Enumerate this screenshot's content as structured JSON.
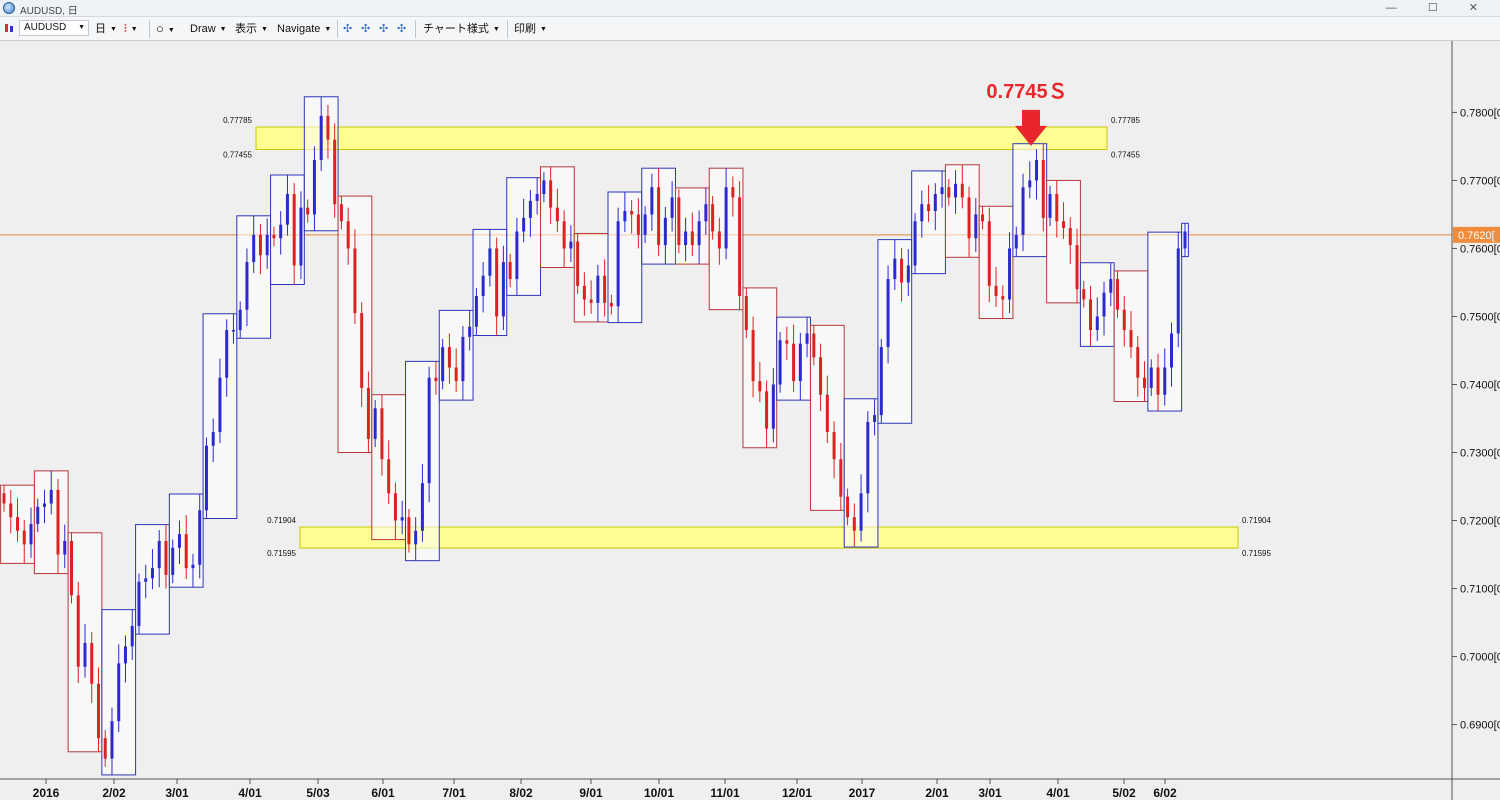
{
  "window": {
    "title": "AUDUSD, 日",
    "buttons": [
      "—",
      "☐",
      "✕"
    ]
  },
  "toolbar": {
    "symbol": "AUDUSD",
    "timeframe": "日",
    "draw": "Draw",
    "display": "表示",
    "navigate": "Navigate",
    "chart_style": "チャート様式",
    "print": "印刷"
  },
  "chart_data": {
    "type": "candlestick",
    "symbol": "AUDUSD",
    "timeframe": "日",
    "ylim": [
      0.682,
      0.7905
    ],
    "yticks": [
      "0.7800[0",
      "0.7700[0",
      "0.7600[0",
      "0.7500[0",
      "0.7400[0",
      "0.7300[0",
      "0.7200[0",
      "0.7100[0",
      "0.7000[0",
      "0.6900[0"
    ],
    "ytick_values": [
      0.78,
      0.77,
      0.76,
      0.75,
      0.74,
      0.73,
      0.72,
      0.71,
      0.7,
      0.69
    ],
    "xticks": [
      "2016",
      "2/02",
      "3/01",
      "4/01",
      "5/03",
      "6/01",
      "7/01",
      "8/02",
      "9/01",
      "10/01",
      "11/01",
      "12/01",
      "2017",
      "2/01",
      "3/01",
      "4/01",
      "5/02",
      "6/02"
    ],
    "current_price": 0.762,
    "current_price_label": "0.7620[",
    "annotation": {
      "text": "0.7745Ｓ",
      "price": 0.7745,
      "near": "3/01–4/01"
    },
    "zones": [
      {
        "upper": 0.77785,
        "lower": 0.77455,
        "upper_label": "0.77785",
        "lower_label": "0.77455",
        "from": "4/01",
        "to": "5/02"
      },
      {
        "upper": 0.71904,
        "lower": 0.71595,
        "upper_label": "0.71904",
        "lower_label": "0.71595",
        "from": "5/03",
        "to": "6/02"
      }
    ],
    "closes": [
      0.7225,
      0.7205,
      0.7185,
      0.7165,
      0.7195,
      0.722,
      0.7225,
      0.7245,
      0.715,
      0.717,
      0.709,
      0.6985,
      0.702,
      0.696,
      0.688,
      0.685,
      0.6905,
      0.699,
      0.7015,
      0.7045,
      0.711,
      0.7115,
      0.713,
      0.717,
      0.712,
      0.716,
      0.718,
      0.713,
      0.7135,
      0.7215,
      0.731,
      0.733,
      0.741,
      0.748,
      0.748,
      0.751,
      0.758,
      0.762,
      0.759,
      0.762,
      0.7615,
      0.7635,
      0.768,
      0.7575,
      0.766,
      0.765,
      0.773,
      0.7795,
      0.776,
      0.7665,
      0.764,
      0.76,
      0.7505,
      0.7395,
      0.732,
      0.7365,
      0.729,
      0.724,
      0.72,
      0.7205,
      0.7165,
      0.7185,
      0.7255,
      0.741,
      0.7405,
      0.7455,
      0.7425,
      0.7405,
      0.747,
      0.7485,
      0.753,
      0.756,
      0.76,
      0.75,
      0.758,
      0.7555,
      0.7625,
      0.7645,
      0.767,
      0.768,
      0.77,
      0.766,
      0.764,
      0.76,
      0.761,
      0.7545,
      0.7525,
      0.752,
      0.756,
      0.752,
      0.7515,
      0.764,
      0.7655,
      0.765,
      0.762,
      0.765,
      0.769,
      0.7605,
      0.7645,
      0.7675,
      0.7605,
      0.7625,
      0.7605,
      0.764,
      0.7665,
      0.7625,
      0.76,
      0.769,
      0.7675,
      0.753,
      0.748,
      0.7405,
      0.739,
      0.7335,
      0.74,
      0.7465,
      0.746,
      0.7405,
      0.746,
      0.7475,
      0.744,
      0.7385,
      0.733,
      0.729,
      0.7235,
      0.7205,
      0.7185,
      0.724,
      0.7345,
      0.7355,
      0.7455,
      0.7555,
      0.7585,
      0.755,
      0.7575,
      0.764,
      0.7665,
      0.7655,
      0.768,
      0.769,
      0.7675,
      0.7695,
      0.7675,
      0.7615,
      0.765,
      0.764,
      0.7545,
      0.753,
      0.7525,
      0.76,
      0.762,
      0.769,
      0.77,
      0.773,
      0.7645,
      0.768,
      0.764,
      0.763,
      0.7605,
      0.754,
      0.7525,
      0.748,
      0.75,
      0.7535,
      0.7555,
      0.751,
      0.748,
      0.7455,
      0.741,
      0.7395,
      0.7425,
      0.7385,
      0.7425,
      0.7475,
      0.76,
      0.7625
    ]
  }
}
